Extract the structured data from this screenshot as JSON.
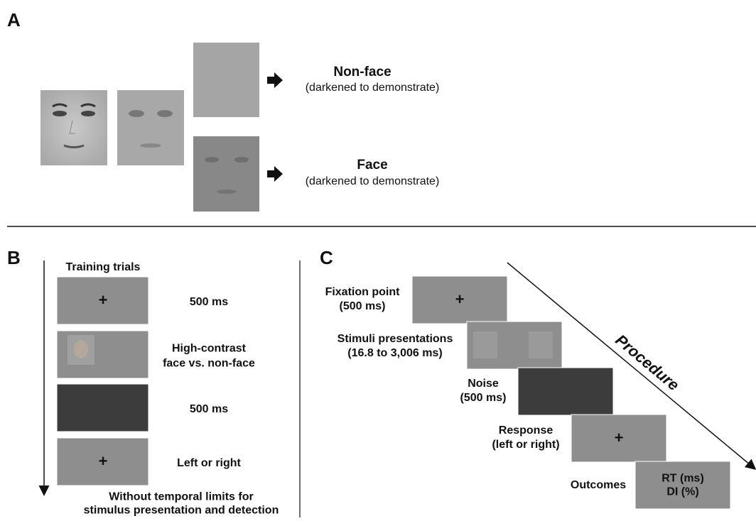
{
  "panel_a": {
    "label": "A",
    "outcomes": [
      {
        "title": "Non-face",
        "note": "(darkened to demonstrate)"
      },
      {
        "title": "Face",
        "note": "(darkened to demonstrate)"
      }
    ]
  },
  "panel_b": {
    "label": "B",
    "heading": "Training trials",
    "steps": [
      {
        "screen": "+",
        "caption": [
          "500 ms"
        ]
      },
      {
        "screen": null,
        "caption": [
          "High-contrast",
          "face vs. non-face"
        ]
      },
      {
        "screen": null,
        "caption": [
          "500 ms"
        ]
      },
      {
        "screen": "+",
        "caption": [
          "Left or right"
        ]
      }
    ],
    "footer": [
      "Without temporal limits for",
      "stimulus presentation and detection"
    ]
  },
  "panel_c": {
    "label": "C",
    "arrow_label": "Procedure",
    "steps": [
      {
        "caption": [
          "Fixation point",
          "(500 ms)"
        ],
        "screen": [
          "+"
        ]
      },
      {
        "caption": [
          "Stimuli presentations",
          "(16.8 to 3,006 ms)"
        ],
        "screen": []
      },
      {
        "caption": [
          "Noise",
          "(500 ms)"
        ],
        "screen": []
      },
      {
        "caption": [
          "Response",
          "(left or right)"
        ],
        "screen": [
          "+"
        ]
      },
      {
        "caption": [
          "Outcomes"
        ],
        "screen": [
          "RT (ms)",
          "DI (%)"
        ]
      }
    ]
  }
}
